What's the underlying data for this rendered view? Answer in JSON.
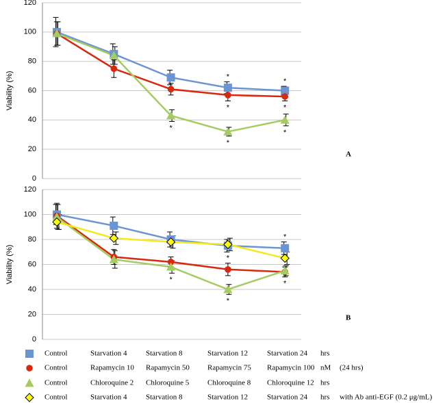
{
  "chart_data": [
    {
      "type": "line",
      "panel_label": "A",
      "ylabel": "Viability (%)",
      "categories": [
        null,
        null,
        null,
        null,
        null
      ],
      "ylim": [
        0,
        120
      ],
      "yticks": [
        0,
        20,
        40,
        60,
        80,
        100,
        120
      ],
      "grid": true,
      "series": [
        {
          "color": "#6b95d2",
          "marker": "square",
          "values": [
            100,
            85,
            69,
            62,
            60
          ],
          "errors": [
            10,
            7,
            5,
            4,
            3
          ]
        },
        {
          "color": "#d8280f",
          "marker": "circle",
          "values": [
            99,
            75,
            61,
            57,
            56
          ],
          "errors": [
            8,
            6,
            4,
            4,
            3
          ]
        },
        {
          "color": "#a5cc60",
          "marker": "triangle",
          "values": [
            99,
            84,
            43,
            32,
            40
          ],
          "errors": [
            8,
            6,
            4,
            3,
            4
          ]
        }
      ],
      "annotations": [
        {
          "text": "*",
          "series": 0,
          "index": 3,
          "side": "above"
        },
        {
          "text": "*",
          "series": 0,
          "index": 4,
          "side": "above"
        },
        {
          "text": "*",
          "series": 1,
          "index": 3,
          "side": "below"
        },
        {
          "text": "*",
          "series": 1,
          "index": 4,
          "side": "below"
        },
        {
          "text": "*",
          "series": 2,
          "index": 2,
          "side": "below"
        },
        {
          "text": "*",
          "series": 2,
          "index": 3,
          "side": "below"
        },
        {
          "text": "*",
          "series": 2,
          "index": 4,
          "side": "below"
        }
      ]
    },
    {
      "type": "line",
      "panel_label": "B",
      "ylabel": "Viability (%)",
      "categories": [
        null,
        null,
        null,
        null,
        null
      ],
      "ylim": [
        0,
        120
      ],
      "yticks": [
        0,
        20,
        40,
        60,
        80,
        100,
        120
      ],
      "grid": true,
      "series": [
        {
          "color": "#6b95d2",
          "marker": "square",
          "values": [
            100,
            91,
            80,
            75,
            73
          ],
          "errors": [
            8,
            7,
            6,
            5,
            5
          ]
        },
        {
          "color": "#d8280f",
          "marker": "circle",
          "values": [
            99,
            66,
            62,
            56,
            54
          ],
          "errors": [
            10,
            6,
            4,
            5,
            4
          ]
        },
        {
          "color": "#a5cc60",
          "marker": "triangle",
          "values": [
            98,
            64,
            58,
            40,
            55
          ],
          "errors": [
            10,
            7,
            5,
            4,
            4
          ]
        },
        {
          "color": "#ffff00",
          "marker": "diamond",
          "values": [
            94,
            81,
            78,
            76,
            65
          ],
          "errors": [
            6,
            5,
            5,
            5,
            5
          ]
        }
      ],
      "annotations": [
        {
          "text": "*",
          "series": 0,
          "index": 4,
          "side": "above"
        },
        {
          "text": "*",
          "series": 1,
          "index": 3,
          "side": "above"
        },
        {
          "text": "*",
          "series": 1,
          "index": 4,
          "side": "below"
        },
        {
          "text": "*",
          "series": 2,
          "index": 2,
          "side": "below"
        },
        {
          "text": "*",
          "series": 2,
          "index": 3,
          "side": "below"
        }
      ]
    }
  ],
  "legend": {
    "rows": [
      {
        "color": "#6b95d2",
        "marker": "square",
        "labels": [
          "Control",
          "Starvation 4",
          "Starvation 8",
          "Starvation 12",
          "Starvation 24",
          "hrs"
        ]
      },
      {
        "color": "#d8280f",
        "marker": "circle",
        "labels": [
          "Control",
          "Rapamycin 10",
          "Rapamycin 50",
          "Rapamycin 75",
          "Rapamycin 100",
          "nM",
          "(24 hrs)"
        ]
      },
      {
        "color": "#a5cc60",
        "marker": "triangle",
        "labels": [
          "Control",
          "Chloroquine 2",
          "Chloroquine 5",
          "Chloroquine 8",
          "Chloroquine 12",
          "hrs"
        ]
      },
      {
        "color": "#ffff00",
        "marker": "diamond",
        "labels": [
          "Control",
          "Starvation 4",
          "Starvation 8",
          "Starvation 12",
          "Starvation 24",
          "hrs",
          "with Ab anti-EGF (0.2 μg/mL)"
        ]
      }
    ]
  }
}
